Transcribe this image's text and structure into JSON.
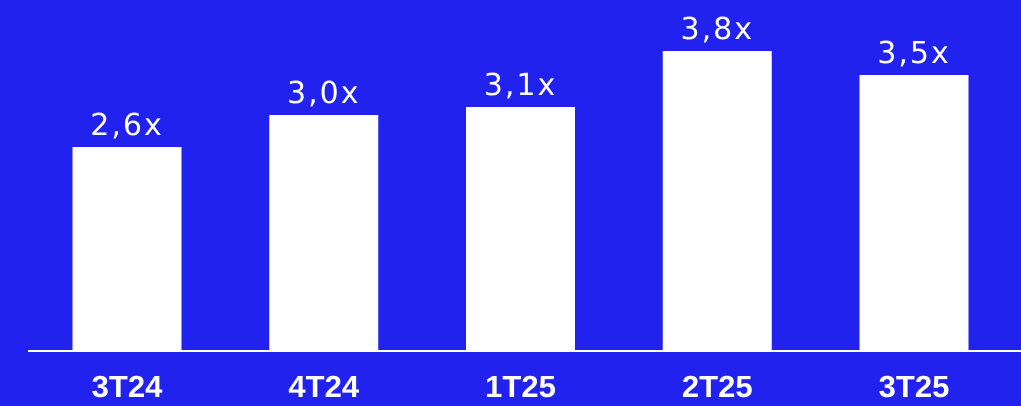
{
  "colors": {
    "background": "#2222EE",
    "bar": "#FFFFFF",
    "text": "#FFFFFF"
  },
  "chart_data": {
    "type": "bar",
    "categories": [
      "3T24",
      "4T24",
      "1T25",
      "2T25",
      "3T25"
    ],
    "values": [
      2.6,
      3.0,
      3.1,
      3.8,
      3.5
    ],
    "data_labels": [
      "2,6x",
      "3,0x",
      "3,1x",
      "3,8x",
      "3,5x"
    ],
    "title": "",
    "xlabel": "",
    "ylabel": "",
    "ylim": [
      0,
      4.0
    ],
    "grid": false,
    "legend": "none"
  }
}
